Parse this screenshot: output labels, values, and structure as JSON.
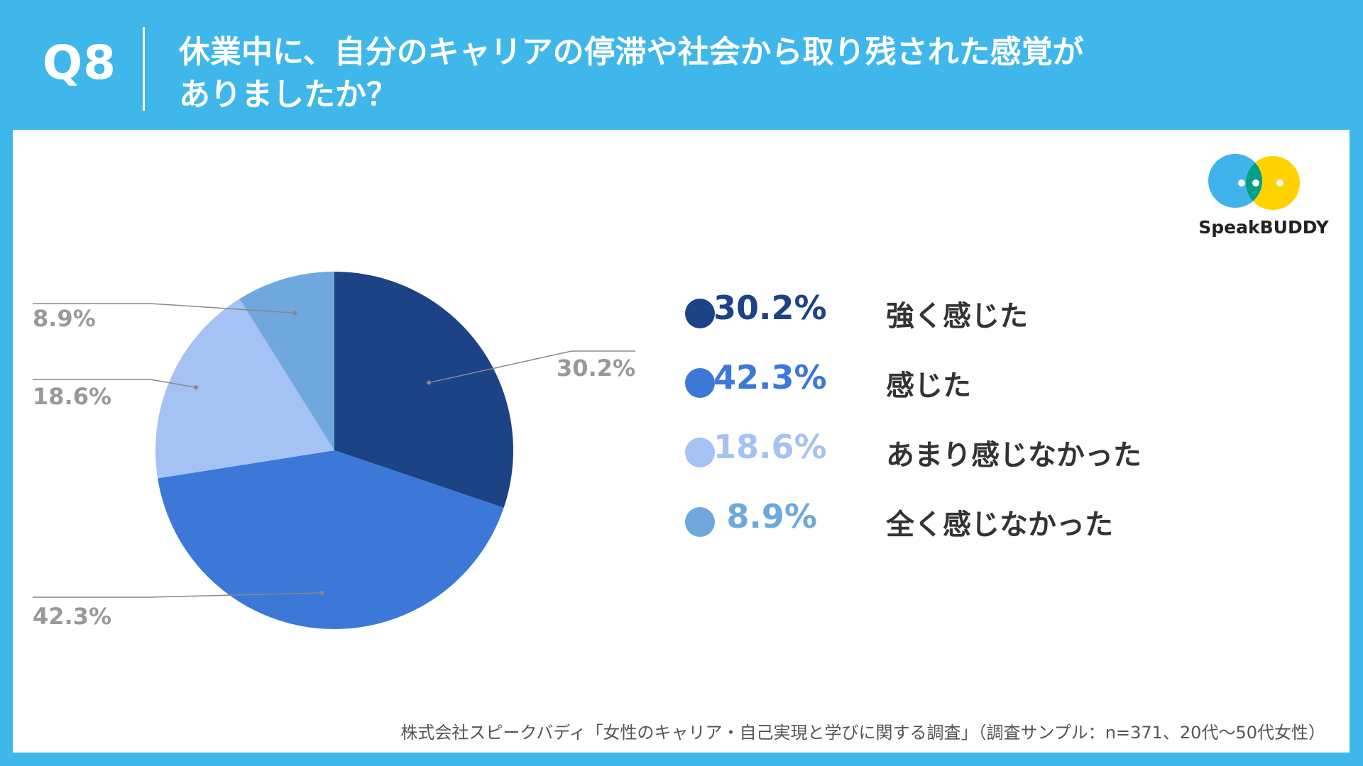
{
  "header": {
    "question_label": "Q8",
    "title_line1": "休業中に、自分のキャリアの停滞や社会から取り残された感覚が",
    "title_line2": "ありましたか？"
  },
  "logo": {
    "name": "SpeakBUDDY",
    "colors": {
      "blue": "#3fb3ec",
      "yellow": "#ffd200",
      "green": "#00a08a"
    }
  },
  "chart_data": {
    "type": "pie",
    "start": "12 o'clock, clockwise",
    "slices": [
      {
        "name": "強く感じた",
        "value": 30.2,
        "label": "30.2%",
        "color": "#1c4386"
      },
      {
        "name": "感じた",
        "value": 42.3,
        "label": "42.3%",
        "color": "#3c78d8"
      },
      {
        "name": "あまり感じなかった",
        "value": 18.6,
        "label": "18.6%",
        "color": "#a4c2f4"
      },
      {
        "name": "全く感じなかった",
        "value": 8.9,
        "label": "8.9%",
        "color": "#6fa8dc"
      }
    ],
    "data_label_color": "#999999",
    "legend_placement": "right"
  },
  "source": "株式会社スピークバディ「女性のキャリア・自己実現と学びに関する調査」（調査サンプル：n=371、20代〜50代女性）"
}
